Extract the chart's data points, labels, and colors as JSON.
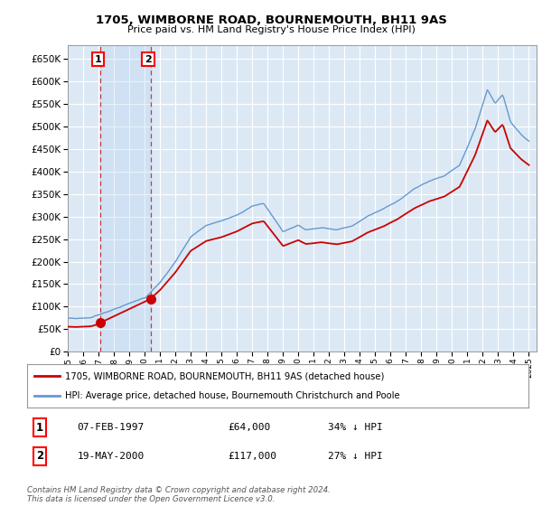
{
  "title1": "1705, WIMBORNE ROAD, BOURNEMOUTH, BH11 9AS",
  "title2": "Price paid vs. HM Land Registry's House Price Index (HPI)",
  "legend_line1": "1705, WIMBORNE ROAD, BOURNEMOUTH, BH11 9AS (detached house)",
  "legend_line2": "HPI: Average price, detached house, Bournemouth Christchurch and Poole",
  "transaction1_date": "07-FEB-1997",
  "transaction1_price": "£64,000",
  "transaction1_hpi": "34% ↓ HPI",
  "transaction1_year": 1997.1,
  "transaction1_value": 64000,
  "transaction2_date": "19-MAY-2000",
  "transaction2_price": "£117,000",
  "transaction2_hpi": "27% ↓ HPI",
  "transaction2_year": 2000.38,
  "transaction2_value": 117000,
  "red_line_color": "#cc0000",
  "blue_line_color": "#6699cc",
  "shade_color": "#dce9f5",
  "plot_bg_color": "#dce9f5",
  "grid_color": "#ffffff",
  "footer": "Contains HM Land Registry data © Crown copyright and database right 2024.\nThis data is licensed under the Open Government Licence v3.0.",
  "ylim_max": 680000,
  "ytick_step": 50000
}
